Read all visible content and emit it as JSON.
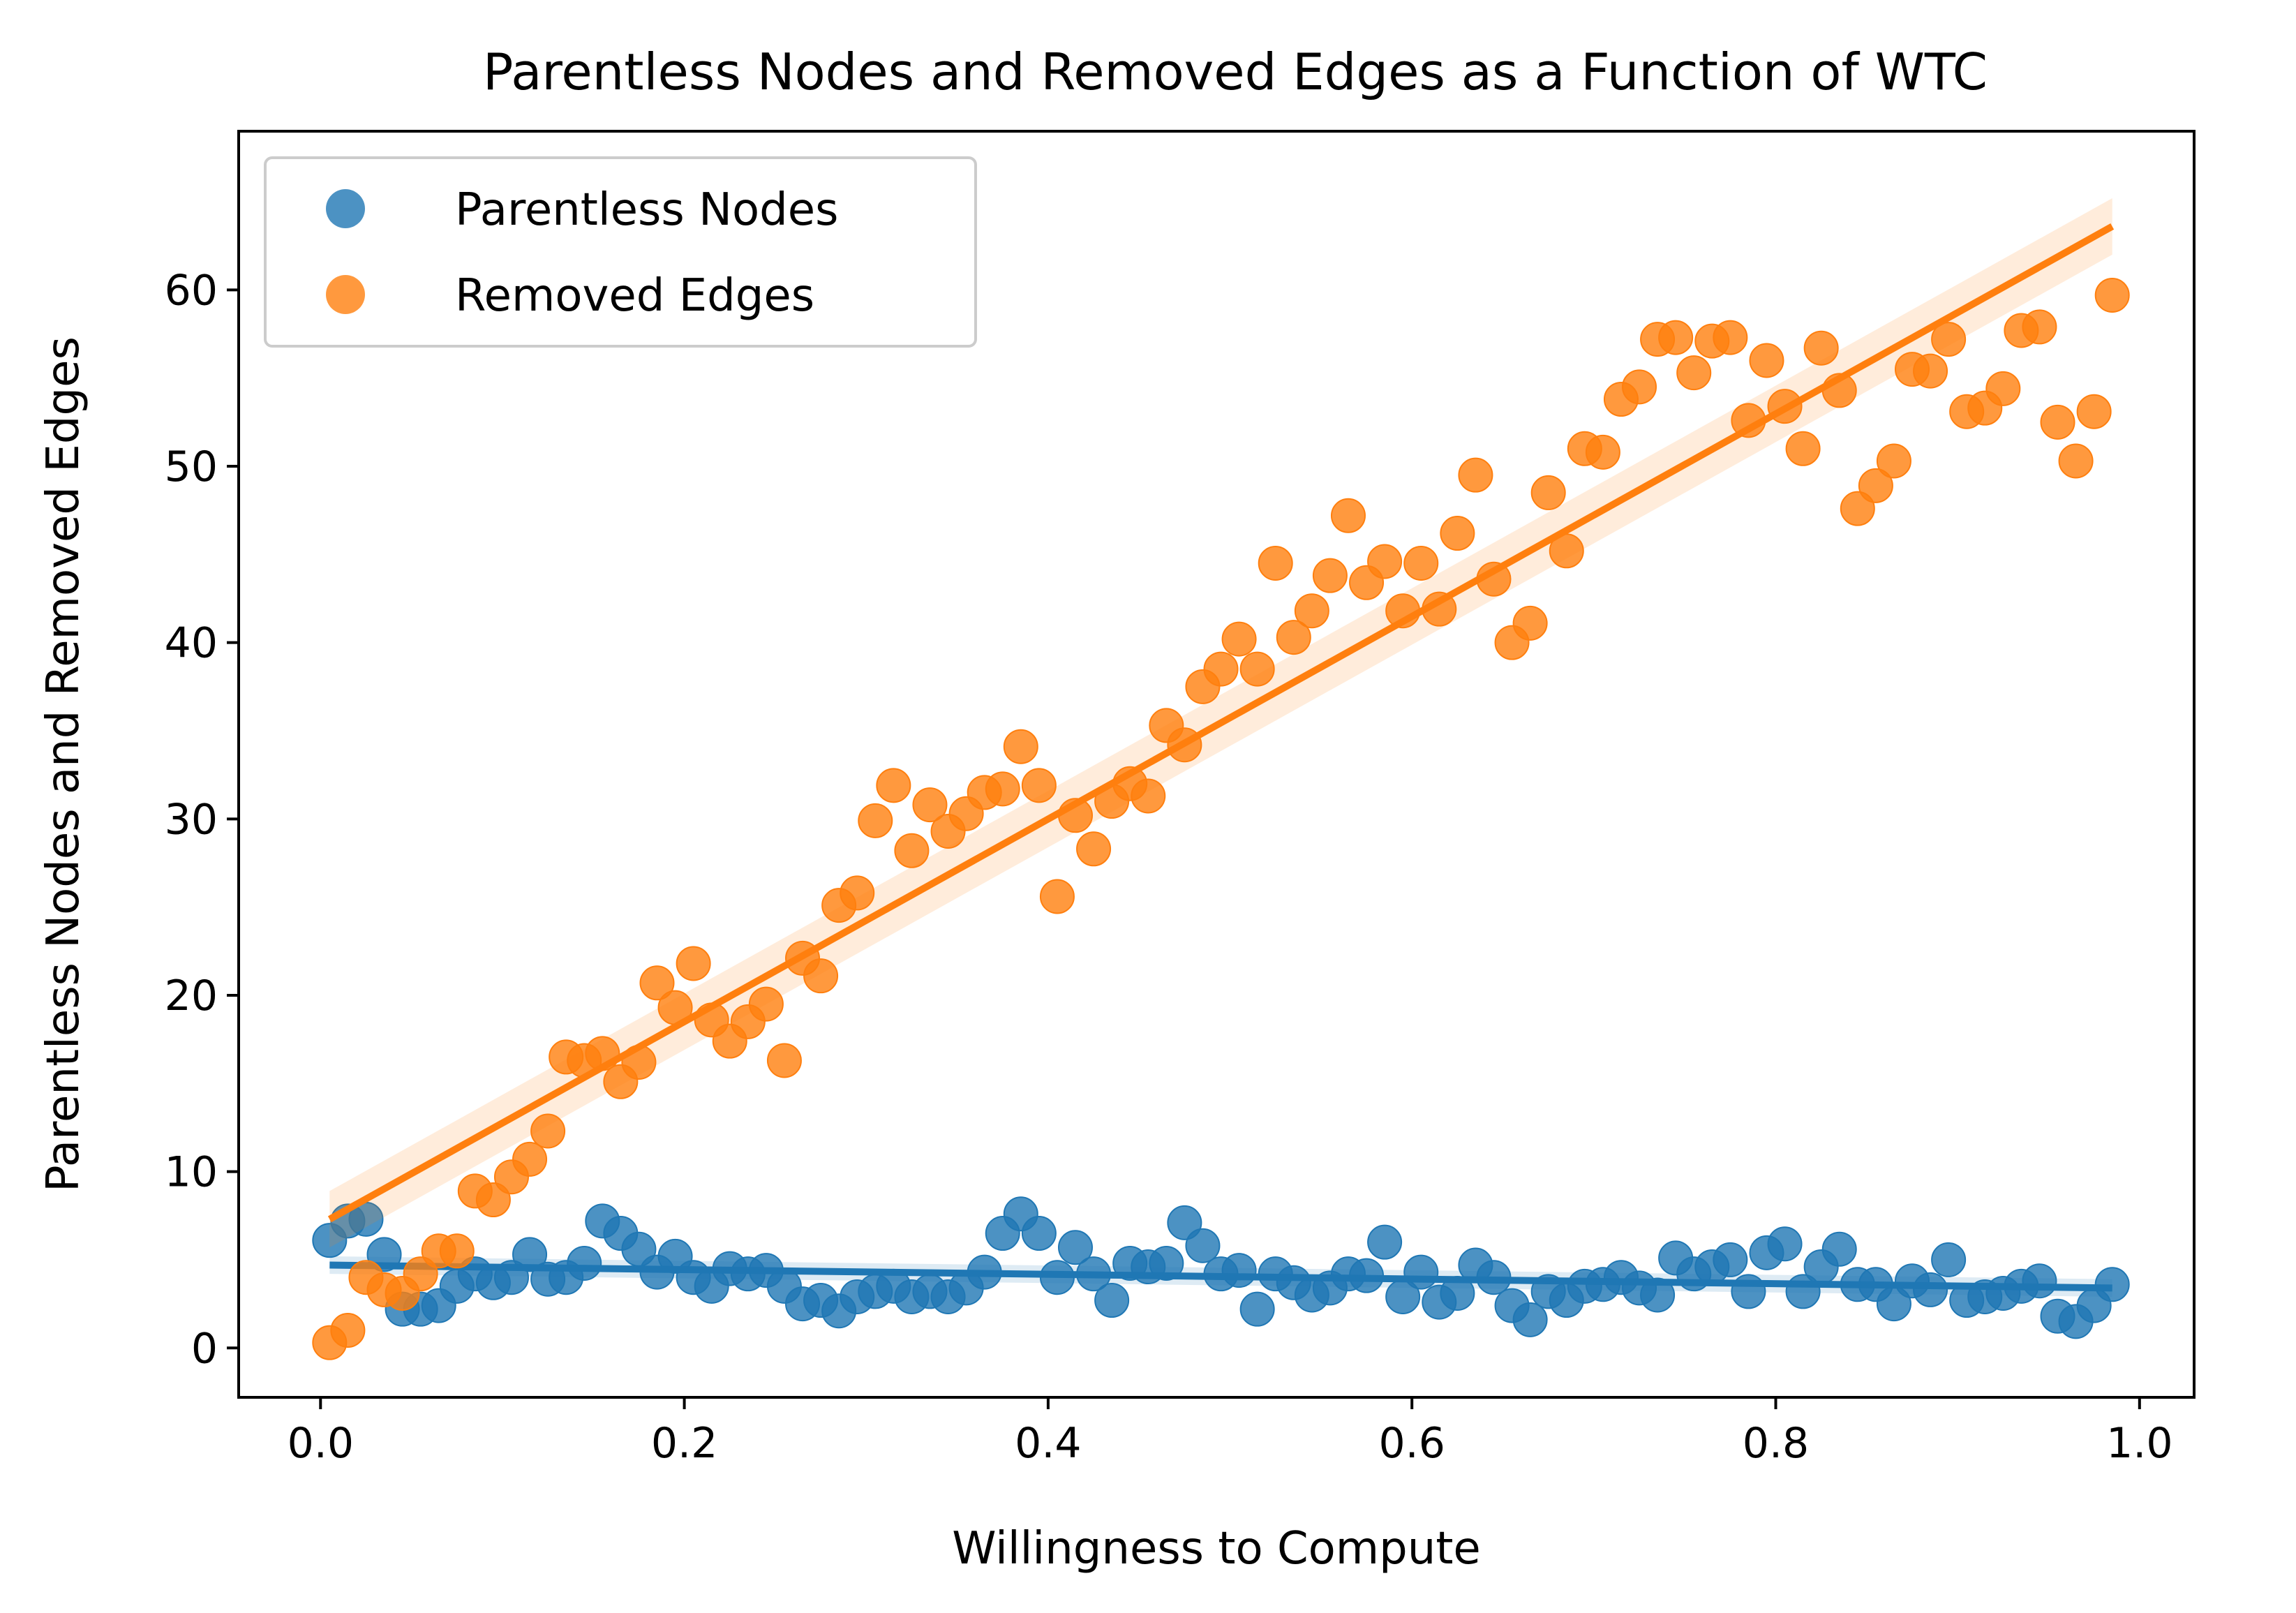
{
  "chart_data": {
    "type": "scatter",
    "title": "Parentless Nodes and Removed Edges as a Function of WTC",
    "xlabel": "Willingness to Compute",
    "ylabel": "Parentless Nodes and Removed Edges",
    "xlim": [
      -0.045,
      1.03
    ],
    "ylim": [
      -2.8,
      69
    ],
    "x_ticks": [
      0.0,
      0.2,
      0.4,
      0.6,
      0.8,
      1.0
    ],
    "x_tick_labels": [
      "0.0",
      "0.2",
      "0.4",
      "0.6",
      "0.8",
      "1.0"
    ],
    "y_ticks": [
      0,
      10,
      20,
      30,
      40,
      50,
      60
    ],
    "y_tick_labels": [
      "0",
      "10",
      "20",
      "30",
      "40",
      "50",
      "60"
    ],
    "grid": false,
    "legend_position": "top-left",
    "series": [
      {
        "name": "Parentless Nodes",
        "color": "#1f77b4",
        "fit": {
          "type": "linear",
          "x": [
            0.005,
            0.985
          ],
          "y": [
            4.7,
            3.4
          ]
        },
        "x": [
          0.005,
          0.015,
          0.025,
          0.035,
          0.045,
          0.055,
          0.065,
          0.075,
          0.085,
          0.095,
          0.105,
          0.115,
          0.125,
          0.135,
          0.145,
          0.155,
          0.165,
          0.175,
          0.185,
          0.195,
          0.205,
          0.215,
          0.225,
          0.235,
          0.245,
          0.255,
          0.265,
          0.275,
          0.285,
          0.295,
          0.305,
          0.315,
          0.325,
          0.335,
          0.345,
          0.355,
          0.365,
          0.375,
          0.385,
          0.395,
          0.405,
          0.415,
          0.425,
          0.435,
          0.445,
          0.455,
          0.465,
          0.475,
          0.485,
          0.495,
          0.505,
          0.515,
          0.525,
          0.535,
          0.545,
          0.555,
          0.565,
          0.575,
          0.585,
          0.595,
          0.605,
          0.615,
          0.625,
          0.635,
          0.645,
          0.655,
          0.665,
          0.675,
          0.685,
          0.695,
          0.705,
          0.715,
          0.725,
          0.735,
          0.745,
          0.755,
          0.765,
          0.775,
          0.785,
          0.795,
          0.805,
          0.815,
          0.825,
          0.835,
          0.845,
          0.855,
          0.865,
          0.875,
          0.885,
          0.895,
          0.905,
          0.915,
          0.925,
          0.935,
          0.945,
          0.955,
          0.965,
          0.975,
          0.985
        ],
        "y": [
          6.1,
          7.2,
          7.3,
          5.3,
          2.2,
          2.2,
          2.4,
          3.5,
          4.2,
          3.7,
          4.0,
          5.3,
          3.9,
          4.0,
          4.8,
          7.2,
          6.5,
          5.6,
          4.3,
          5.2,
          4.0,
          3.5,
          4.5,
          4.2,
          4.4,
          3.5,
          2.5,
          2.7,
          2.1,
          2.9,
          3.2,
          3.5,
          2.9,
          3.2,
          2.9,
          3.4,
          4.3,
          6.5,
          7.6,
          6.5,
          4.0,
          5.7,
          4.2,
          2.7,
          4.8,
          4.6,
          4.8,
          7.1,
          5.8,
          4.2,
          4.4,
          2.2,
          4.2,
          3.7,
          3.0,
          3.4,
          4.2,
          4.1,
          6.0,
          2.9,
          4.3,
          2.6,
          3.1,
          4.7,
          4.0,
          2.4,
          1.6,
          3.2,
          2.7,
          3.5,
          3.6,
          4.0,
          3.4,
          3.0,
          5.1,
          4.2,
          4.6,
          5.0,
          3.2,
          5.4,
          5.9,
          3.2,
          4.6,
          5.6,
          3.6,
          3.6,
          2.5,
          3.8,
          3.3,
          5.0,
          2.7,
          2.9,
          3.1,
          3.5,
          3.8,
          1.8,
          1.5,
          2.4,
          3.6
        ]
      },
      {
        "name": "Removed Edges",
        "color": "#ff7f0e",
        "fit": {
          "type": "linear",
          "x": [
            0.005,
            0.985
          ],
          "y": [
            7.3,
            63.6
          ]
        },
        "x": [
          0.005,
          0.015,
          0.025,
          0.035,
          0.045,
          0.055,
          0.065,
          0.075,
          0.085,
          0.095,
          0.105,
          0.115,
          0.125,
          0.135,
          0.145,
          0.155,
          0.165,
          0.175,
          0.185,
          0.195,
          0.205,
          0.215,
          0.225,
          0.235,
          0.245,
          0.255,
          0.265,
          0.275,
          0.285,
          0.295,
          0.305,
          0.315,
          0.325,
          0.335,
          0.345,
          0.355,
          0.365,
          0.375,
          0.385,
          0.395,
          0.405,
          0.415,
          0.425,
          0.435,
          0.445,
          0.455,
          0.465,
          0.475,
          0.485,
          0.495,
          0.505,
          0.515,
          0.525,
          0.535,
          0.545,
          0.555,
          0.565,
          0.575,
          0.585,
          0.595,
          0.605,
          0.615,
          0.625,
          0.635,
          0.645,
          0.655,
          0.665,
          0.675,
          0.685,
          0.695,
          0.705,
          0.715,
          0.725,
          0.735,
          0.745,
          0.755,
          0.765,
          0.775,
          0.785,
          0.795,
          0.805,
          0.815,
          0.825,
          0.835,
          0.845,
          0.855,
          0.865,
          0.875,
          0.885,
          0.895,
          0.905,
          0.915,
          0.925,
          0.935,
          0.945,
          0.955,
          0.965,
          0.975,
          0.985
        ],
        "y": [
          0.3,
          1.0,
          4.0,
          3.3,
          3.1,
          4.2,
          5.5,
          5.5,
          8.9,
          8.4,
          9.7,
          10.7,
          12.3,
          16.5,
          16.3,
          16.7,
          15.1,
          16.2,
          20.7,
          19.3,
          21.8,
          18.6,
          17.4,
          18.5,
          19.5,
          16.3,
          22.1,
          21.1,
          25.1,
          25.8,
          29.9,
          31.9,
          28.2,
          30.8,
          29.3,
          30.3,
          31.5,
          31.7,
          34.1,
          31.9,
          25.6,
          30.2,
          28.3,
          31.0,
          32.0,
          31.3,
          35.3,
          34.2,
          37.5,
          38.5,
          40.2,
          38.5,
          44.5,
          40.3,
          41.8,
          43.8,
          47.2,
          43.4,
          44.6,
          41.8,
          44.5,
          41.9,
          46.2,
          49.5,
          43.6,
          40.0,
          41.1,
          48.5,
          45.2,
          51.0,
          50.8,
          53.8,
          54.5,
          57.2,
          57.3,
          55.3,
          57.1,
          57.3,
          52.6,
          56.0,
          53.4,
          51.0,
          56.7,
          54.3,
          47.6,
          48.9,
          50.3,
          55.5,
          55.4,
          57.2,
          53.1,
          53.3,
          54.4,
          57.7,
          57.9,
          52.5,
          50.3,
          53.1,
          59.7
        ]
      }
    ]
  }
}
